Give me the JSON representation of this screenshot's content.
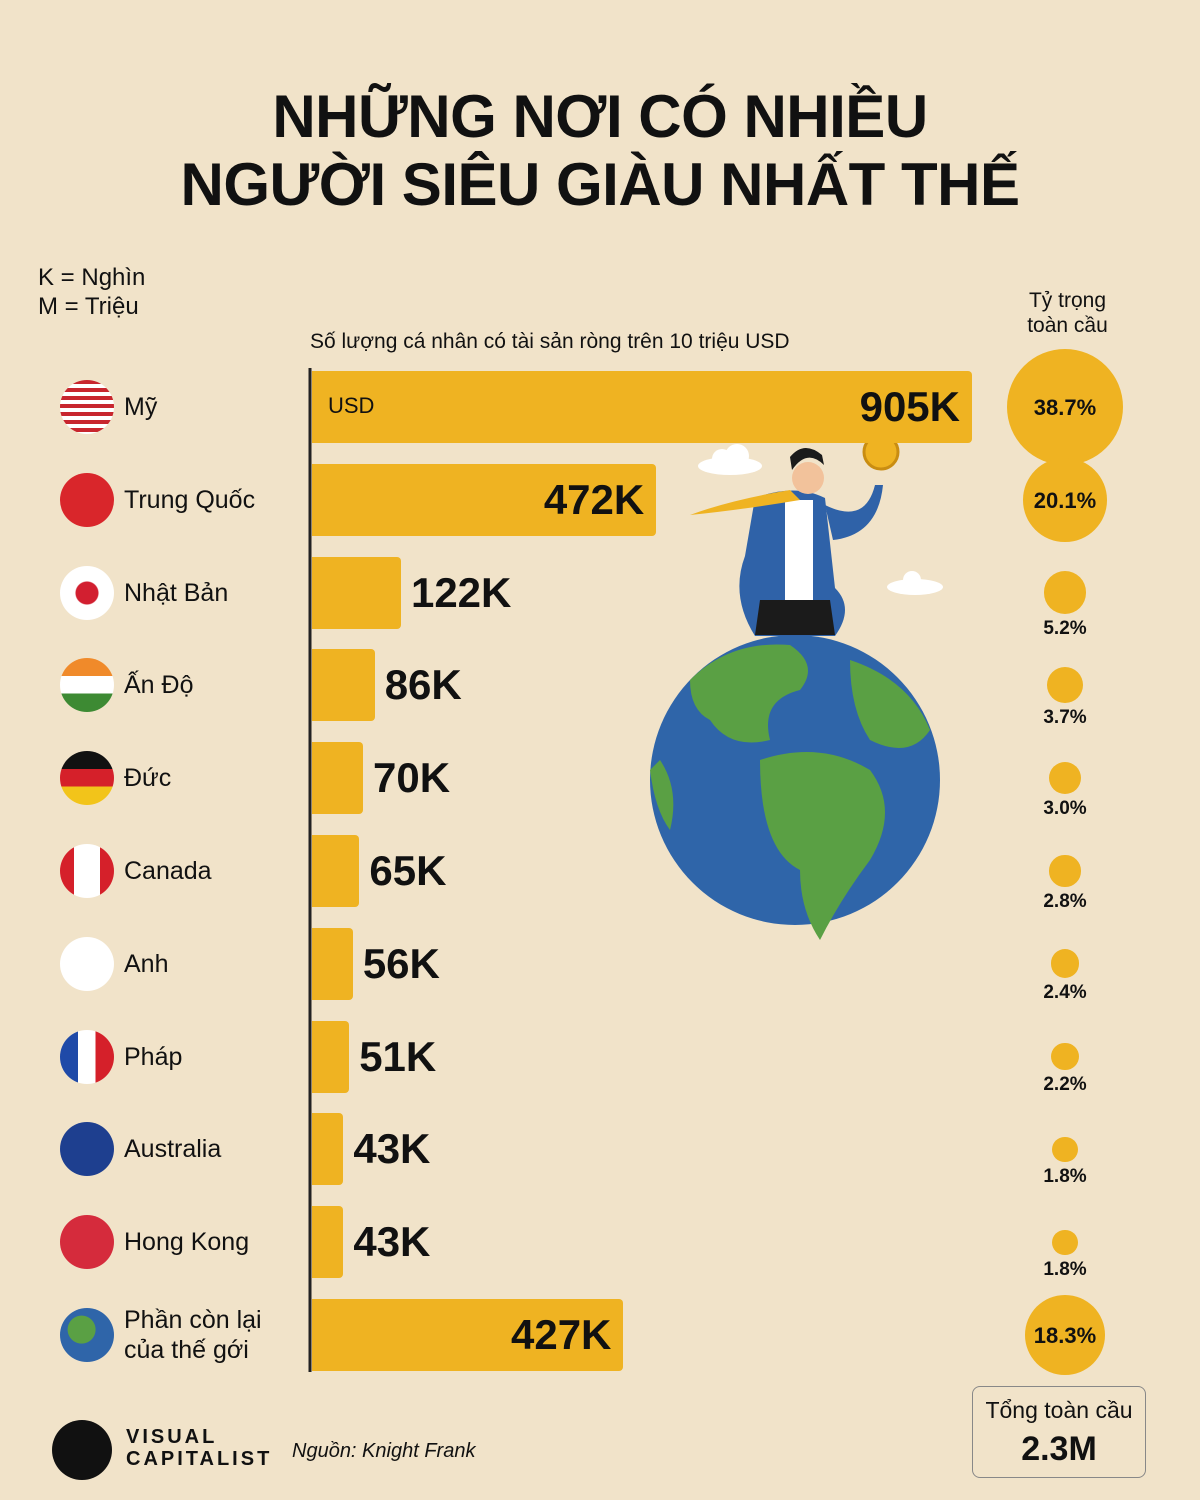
{
  "chart_data": {
    "type": "bar",
    "orientation": "horizontal",
    "title": [
      "NHỮNG NƠI CÓ NHIỀU",
      "NGƯỜI SIÊU GIÀU NHẤT THẾ"
    ],
    "notes": [
      "K = Nghìn",
      "M = Triệu"
    ],
    "subtitle": "Số lượng cá nhân có tài sản ròng trên 10 triệu USD",
    "unit_label": "USD",
    "categories": [
      "Mỹ",
      "Trung Quốc",
      "Nhật Bản",
      "Ấn Độ",
      "Đức",
      "Canada",
      "Anh",
      "Pháp",
      "Australia",
      "Hong Kong",
      "Phần còn lại của thế gới"
    ],
    "values": [
      905,
      472,
      122,
      86,
      70,
      65,
      56,
      51,
      43,
      43,
      427
    ],
    "value_labels": [
      "905K",
      "472K",
      "122K",
      "86K",
      "70K",
      "65K",
      "56K",
      "51K",
      "43K",
      "43K",
      "427K"
    ],
    "color": "#efb322",
    "share_title": "Tỷ trọng toàn cầu",
    "shares": [
      38.7,
      20.1,
      5.2,
      3.7,
      3.0,
      2.8,
      2.4,
      2.2,
      1.8,
      1.8,
      18.3
    ],
    "share_labels": [
      "38.7%",
      "20.1%",
      "5.2%",
      "3.7%",
      "3.0%",
      "2.8%",
      "2.4%",
      "2.2%",
      "1.8%",
      "1.8%",
      "18.3%"
    ],
    "total_title": "Tổng toàn cầu",
    "total": 2.3,
    "total_label": "2.3M",
    "source": "Nguồn: Knight Frank",
    "brand": [
      "VISUAL",
      "CAPITALIST"
    ]
  }
}
